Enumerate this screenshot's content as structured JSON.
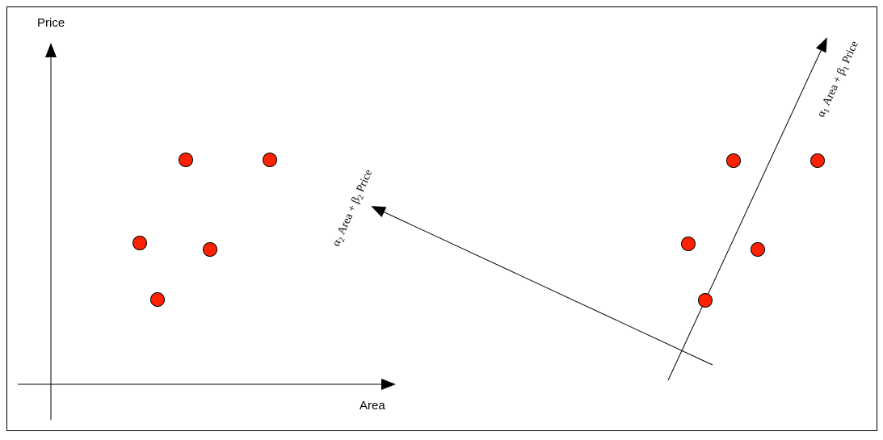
{
  "diagram": {
    "left_plot": {
      "y_axis_label": "Price",
      "x_axis_label": "Area"
    },
    "right_plot": {
      "axis1_label": {
        "alpha": "α",
        "alpha_sub": "1",
        "mid": " Area + ",
        "beta": "β",
        "beta_sub": "1",
        "tail": " Price"
      },
      "axis2_label": {
        "alpha": "α",
        "alpha_sub": "2",
        "mid": " Area + ",
        "beta": "β",
        "beta_sub": "2",
        "tail": " Price"
      }
    },
    "point_count_per_plot": 5,
    "colors": {
      "point_fill": "#ff2200",
      "point_stroke": "#000000",
      "line": "#000000",
      "frame": "#000000",
      "background": "#ffffff"
    }
  }
}
